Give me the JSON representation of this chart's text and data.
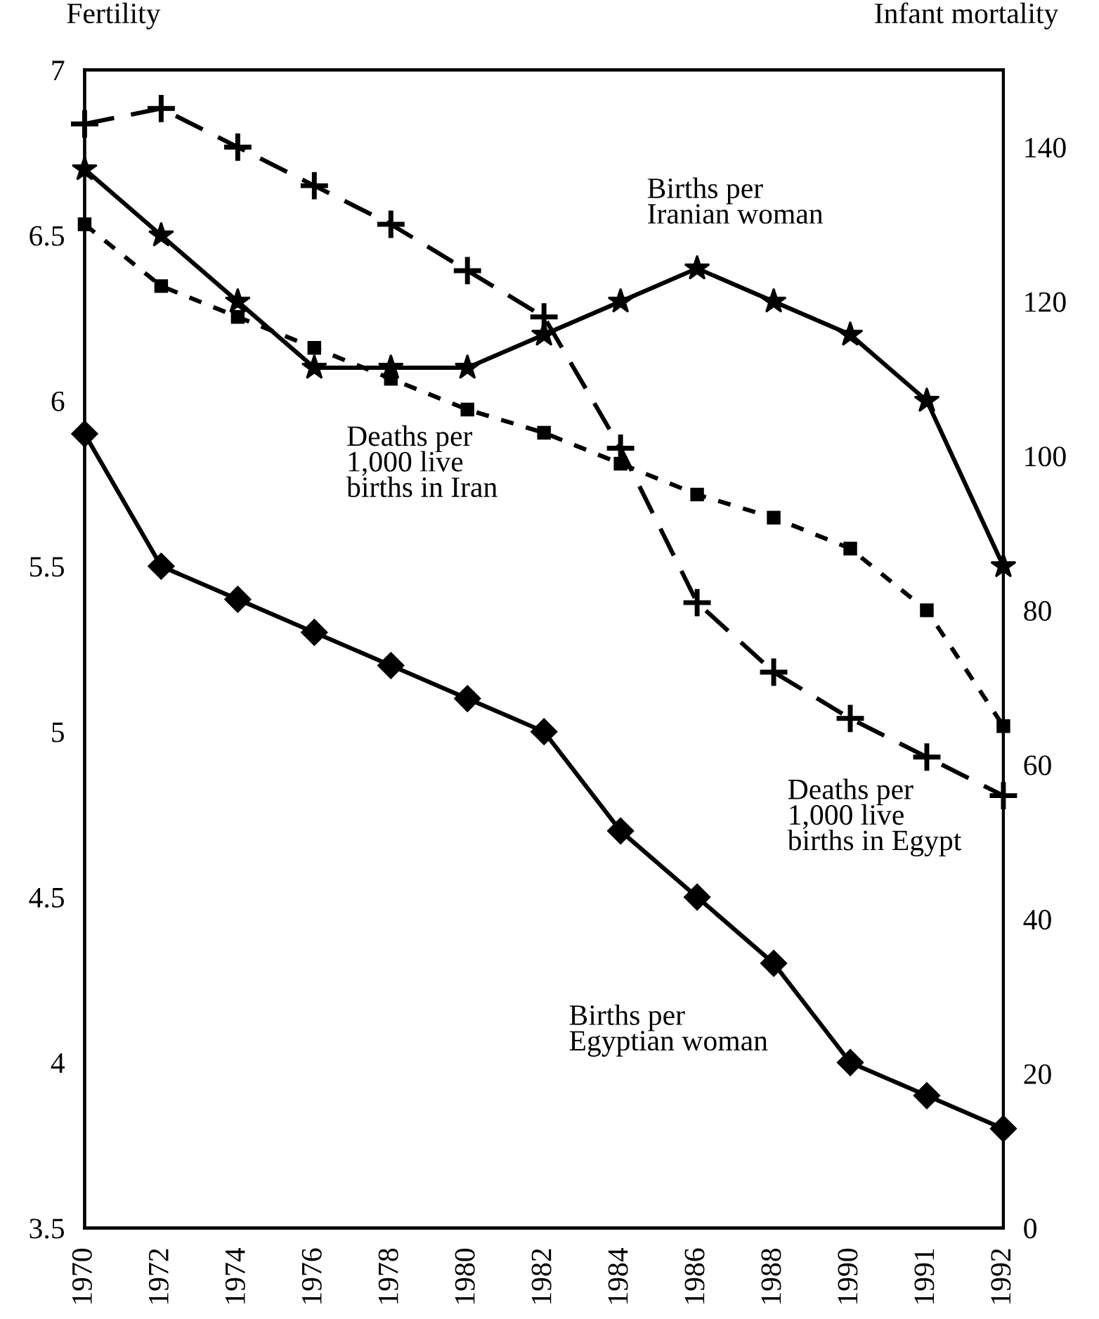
{
  "chart_data": {
    "type": "line",
    "ylabel": "Fertility",
    "y2label": "Infant mortality",
    "categories": [
      "1970",
      "1972",
      "1974",
      "1976",
      "1978",
      "1980",
      "1982",
      "1984",
      "1986",
      "1988",
      "1990",
      "1991",
      "1992"
    ],
    "series": [
      {
        "color": "#000000",
        "marker": "star",
        "line_style": "solid",
        "values": [
          6.7,
          6.5,
          6.3,
          6.1,
          6.1,
          6.1,
          6.2,
          6.3,
          6.4,
          6.3,
          6.2,
          6.0,
          5.5
        ]
      },
      {
        "color": "#000000",
        "marker": "diamond",
        "line_style": "solid",
        "values": [
          5.9,
          5.5,
          5.4,
          5.3,
          5.2,
          5.1,
          5.0,
          4.7,
          4.5,
          4.3,
          4.0,
          3.9,
          3.8
        ]
      },
      {
        "color": "#000000",
        "marker": "square",
        "line_style": "dotted",
        "axis": "y2",
        "values": [
          130,
          122,
          118,
          114,
          110,
          106,
          103,
          99,
          95,
          92,
          88,
          80,
          65
        ]
      },
      {
        "color": "#000000",
        "marker": "cross",
        "line_style": "dashed",
        "axis": "y2",
        "values": [
          143,
          145,
          140,
          135,
          130,
          124,
          118,
          101,
          81,
          72,
          66,
          61,
          56
        ]
      }
    ],
    "ylim": [
      3.5,
      7
    ],
    "yticks": [
      3.5,
      4,
      4.5,
      5,
      5.5,
      6,
      6.5,
      7
    ],
    "y2lim": [
      0,
      150
    ],
    "y2ticks": [
      0,
      20,
      40,
      60,
      80,
      100,
      120,
      140
    ],
    "grid": false,
    "legend": false,
    "annotations": [
      "Births per\nIranian woman",
      "Deaths per\n1,000 live\nbirths in Iran",
      "Deaths per\n1,000 live\nbirths in Egypt",
      "Births per\nEgyptian woman"
    ]
  }
}
